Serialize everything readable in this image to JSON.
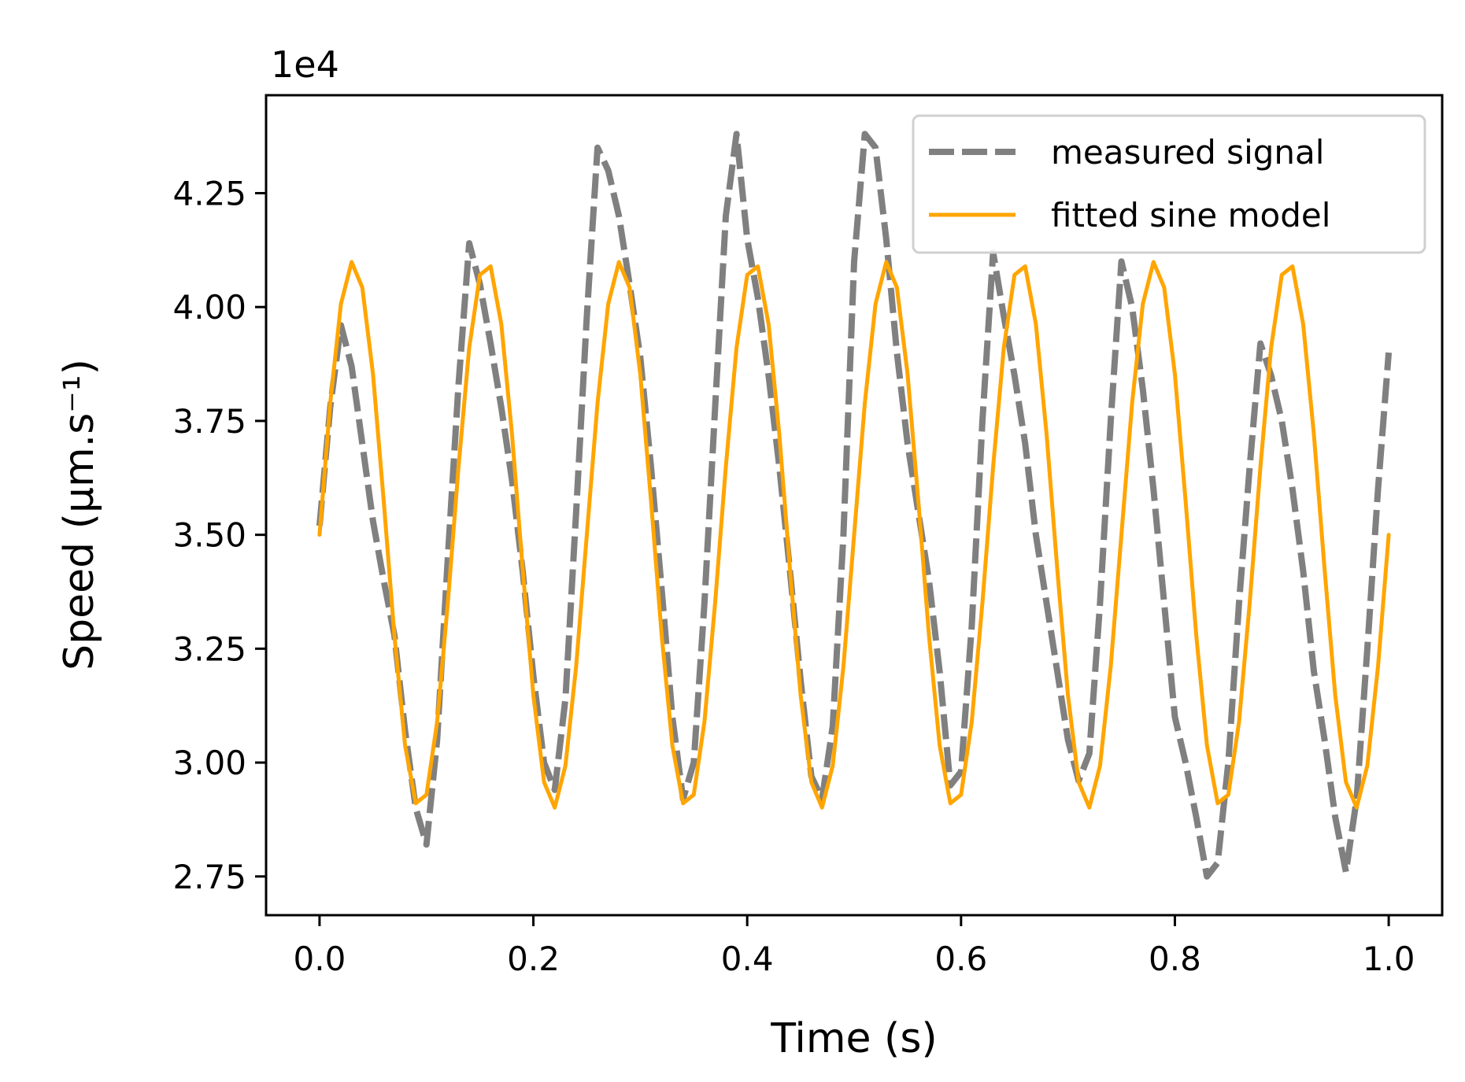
{
  "chart_data": {
    "type": "line",
    "title": "",
    "xlabel": "Time (s)",
    "ylabel": "Speed (μm.s⁻¹)",
    "y_scale_label": "1e4",
    "xlim": [
      -0.05,
      1.05
    ],
    "ylim": [
      2.665,
      4.465
    ],
    "x_ticks": [
      0.0,
      0.2,
      0.4,
      0.6,
      0.8,
      1.0
    ],
    "x_tick_labels": [
      "0.0",
      "0.2",
      "0.4",
      "0.6",
      "0.8",
      "1.0"
    ],
    "y_ticks": [
      2.75,
      3.0,
      3.25,
      3.5,
      3.75,
      4.0,
      4.25
    ],
    "y_tick_labels": [
      "2.75",
      "3.00",
      "3.25",
      "3.50",
      "3.75",
      "4.00",
      "4.25"
    ],
    "legend_position": "top-right",
    "series": [
      {
        "name": "measured signal",
        "style": "dashed",
        "color": "#808080",
        "points": [
          [
            0.0,
            3.52
          ],
          [
            0.01,
            3.78
          ],
          [
            0.02,
            3.96
          ],
          [
            0.03,
            3.87
          ],
          [
            0.04,
            3.7
          ],
          [
            0.05,
            3.53
          ],
          [
            0.06,
            3.4
          ],
          [
            0.07,
            3.28
          ],
          [
            0.08,
            3.07
          ],
          [
            0.09,
            2.9
          ],
          [
            0.1,
            2.82
          ],
          [
            0.11,
            3.05
          ],
          [
            0.12,
            3.45
          ],
          [
            0.13,
            3.83
          ],
          [
            0.14,
            4.14
          ],
          [
            0.15,
            4.05
          ],
          [
            0.16,
            3.92
          ],
          [
            0.17,
            3.78
          ],
          [
            0.18,
            3.62
          ],
          [
            0.19,
            3.42
          ],
          [
            0.2,
            3.19
          ],
          [
            0.21,
            3.0
          ],
          [
            0.22,
            2.94
          ],
          [
            0.23,
            3.14
          ],
          [
            0.24,
            3.55
          ],
          [
            0.25,
            3.98
          ],
          [
            0.26,
            4.35
          ],
          [
            0.27,
            4.3
          ],
          [
            0.28,
            4.2
          ],
          [
            0.29,
            4.05
          ],
          [
            0.3,
            3.89
          ],
          [
            0.31,
            3.65
          ],
          [
            0.32,
            3.38
          ],
          [
            0.33,
            3.1
          ],
          [
            0.34,
            2.92
          ],
          [
            0.35,
            3.0
          ],
          [
            0.36,
            3.35
          ],
          [
            0.37,
            3.78
          ],
          [
            0.38,
            4.2
          ],
          [
            0.39,
            4.38
          ],
          [
            0.4,
            4.15
          ],
          [
            0.41,
            4.02
          ],
          [
            0.42,
            3.85
          ],
          [
            0.43,
            3.65
          ],
          [
            0.44,
            3.42
          ],
          [
            0.45,
            3.18
          ],
          [
            0.46,
            2.97
          ],
          [
            0.47,
            2.92
          ],
          [
            0.48,
            3.08
          ],
          [
            0.49,
            3.5
          ],
          [
            0.5,
            4.1
          ],
          [
            0.51,
            4.38
          ],
          [
            0.52,
            4.35
          ],
          [
            0.53,
            4.15
          ],
          [
            0.54,
            3.9
          ],
          [
            0.55,
            3.7
          ],
          [
            0.56,
            3.55
          ],
          [
            0.57,
            3.4
          ],
          [
            0.58,
            3.2
          ],
          [
            0.59,
            2.95
          ],
          [
            0.6,
            2.98
          ],
          [
            0.61,
            3.3
          ],
          [
            0.62,
            3.75
          ],
          [
            0.63,
            4.12
          ],
          [
            0.64,
            3.98
          ],
          [
            0.65,
            3.85
          ],
          [
            0.66,
            3.7
          ],
          [
            0.67,
            3.5
          ],
          [
            0.68,
            3.35
          ],
          [
            0.69,
            3.2
          ],
          [
            0.7,
            3.05
          ],
          [
            0.71,
            2.96
          ],
          [
            0.72,
            3.02
          ],
          [
            0.73,
            3.35
          ],
          [
            0.74,
            3.75
          ],
          [
            0.75,
            4.1
          ],
          [
            0.76,
            4.0
          ],
          [
            0.77,
            3.82
          ],
          [
            0.78,
            3.6
          ],
          [
            0.79,
            3.35
          ],
          [
            0.8,
            3.1
          ],
          [
            0.81,
            3.0
          ],
          [
            0.82,
            2.88
          ],
          [
            0.83,
            2.75
          ],
          [
            0.84,
            2.78
          ],
          [
            0.85,
            3.0
          ],
          [
            0.86,
            3.35
          ],
          [
            0.87,
            3.65
          ],
          [
            0.88,
            3.92
          ],
          [
            0.89,
            3.85
          ],
          [
            0.9,
            3.75
          ],
          [
            0.91,
            3.6
          ],
          [
            0.92,
            3.42
          ],
          [
            0.93,
            3.2
          ],
          [
            0.94,
            3.05
          ],
          [
            0.95,
            2.88
          ],
          [
            0.96,
            2.76
          ],
          [
            0.97,
            2.92
          ],
          [
            0.98,
            3.25
          ],
          [
            0.99,
            3.6
          ],
          [
            1.0,
            3.9
          ]
        ]
      },
      {
        "name": "fitted sine model",
        "style": "solid",
        "color": "#ffa500",
        "amplitude": 0.6,
        "offset": 3.5,
        "frequency_hz": 8,
        "phase": 0,
        "sample_step": 0.01,
        "x_range": [
          0,
          1
        ]
      }
    ]
  }
}
